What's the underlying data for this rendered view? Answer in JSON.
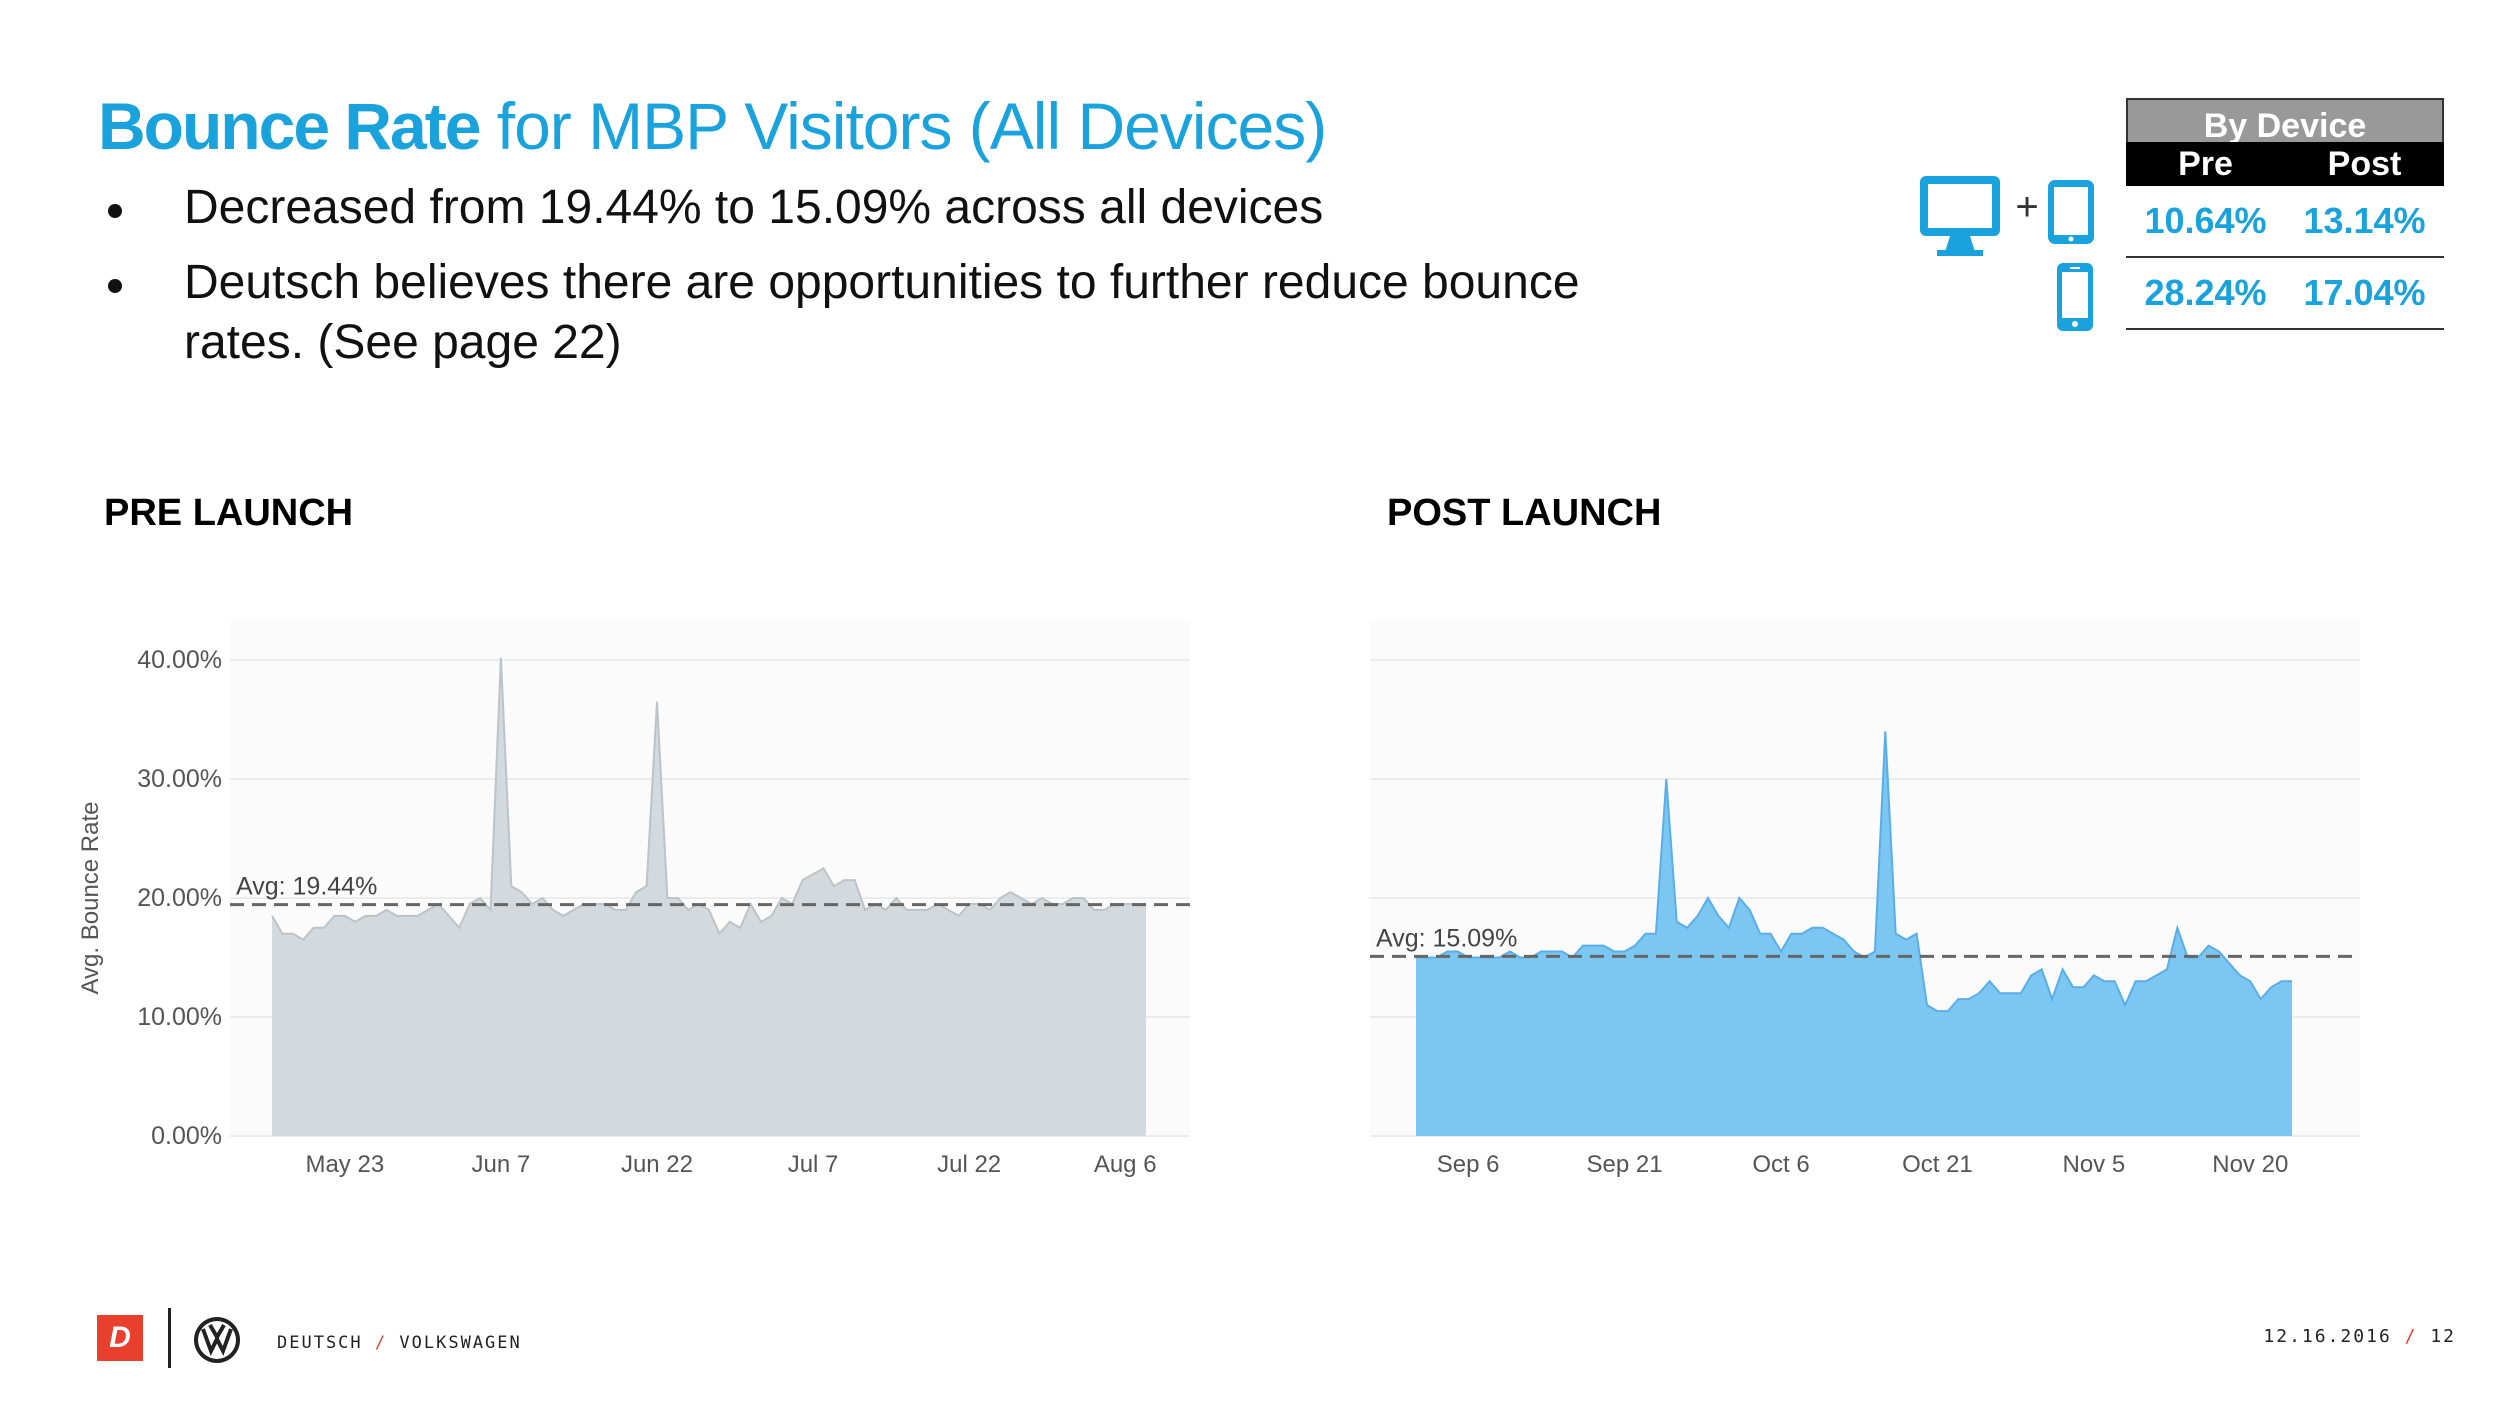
{
  "header": {
    "title_bold": "Bounce Rate",
    "title_rest": " for MBP Visitors  (All Devices)"
  },
  "bullets": [
    "Decreased from 19.44% to 15.09% across all devices",
    "Deutsch believes there are opportunities to further reduce bounce rates.  (See page 22)"
  ],
  "device_table": {
    "title": "By Device",
    "col_pre": "Pre",
    "col_post": "Post",
    "rows": [
      {
        "device_icon": "desktop-plus-tablet-icon",
        "pre": "10.64%",
        "post": "13.14%"
      },
      {
        "device_icon": "smartphone-icon",
        "pre": "28.24%",
        "post": "17.04%"
      }
    ],
    "plus_symbol": "+"
  },
  "colors": {
    "accent": "#1aa2dd",
    "pre_area": "#d3d9dd",
    "post_area": "#7cc6f2",
    "post_line": "#5aaee8",
    "pre_line": "#bcc4c9",
    "footer_red": "#e8402c"
  },
  "sections": {
    "pre": "PRE LAUNCH",
    "post": "POST LAUNCH"
  },
  "chart_data": [
    {
      "type": "area",
      "title": "PRE LAUNCH",
      "ylabel": "Avg. Bounce Rate",
      "xlabel": "",
      "ylim": [
        0,
        40
      ],
      "y_ticks": [
        "0.00%",
        "10.00%",
        "20.00%",
        "30.00%",
        "40.00%"
      ],
      "x_ticks": [
        {
          "label": "May 23",
          "index": 7
        },
        {
          "label": "Jun 7",
          "index": 22
        },
        {
          "label": "Jun 22",
          "index": 37
        },
        {
          "label": "Jul 7",
          "index": 52
        },
        {
          "label": "Jul 22",
          "index": 67
        },
        {
          "label": "Aug 6",
          "index": 82
        }
      ],
      "average": 19.44,
      "average_label": "Avg: 19.44%",
      "grid": true,
      "values": [
        18.5,
        17,
        17,
        16.5,
        17.5,
        17.5,
        18.5,
        18.5,
        18,
        18.5,
        18.5,
        19,
        18.5,
        18.5,
        18.5,
        19,
        19.5,
        18.5,
        17.5,
        19.5,
        20,
        19,
        40.2,
        21,
        20.5,
        19.5,
        20,
        19,
        18.5,
        19,
        19.5,
        19.5,
        19.5,
        19,
        19,
        20.5,
        21,
        36.5,
        20,
        20,
        19,
        19.5,
        19,
        17,
        18,
        17.5,
        19.5,
        18,
        18.5,
        20,
        19.5,
        21.5,
        22,
        22.5,
        21,
        21.5,
        21.5,
        19,
        19.5,
        19,
        20,
        19,
        19,
        19,
        19.5,
        19,
        18.5,
        19.5,
        19.5,
        19,
        20,
        20.5,
        20,
        19.5,
        20,
        19.5,
        19.5,
        20,
        20,
        19,
        19,
        19.5,
        19.5,
        19.5,
        19.5
      ]
    },
    {
      "type": "area",
      "title": "POST LAUNCH",
      "ylabel": "",
      "xlabel": "",
      "ylim": [
        0,
        40
      ],
      "x_ticks": [
        {
          "label": "Sep 6",
          "index": 5
        },
        {
          "label": "Sep 21",
          "index": 20
        },
        {
          "label": "Oct 6",
          "index": 35
        },
        {
          "label": "Oct 21",
          "index": 50
        },
        {
          "label": "Nov 5",
          "index": 65
        },
        {
          "label": "Nov 20",
          "index": 80
        }
      ],
      "average": 15.09,
      "average_label": "Avg: 15.09%",
      "grid": true,
      "values": [
        15,
        15,
        15,
        15.5,
        15.5,
        15,
        15,
        15,
        15,
        15.5,
        15,
        15,
        15.5,
        15.5,
        15.5,
        15,
        16,
        16,
        16,
        15.5,
        15.5,
        16,
        17,
        17,
        30,
        18,
        17.5,
        18.5,
        20,
        18.5,
        17.5,
        20,
        19,
        17,
        17,
        15.5,
        17,
        17,
        17.5,
        17.5,
        17,
        16.5,
        15.5,
        15,
        15.5,
        34,
        17,
        16.5,
        17,
        11,
        10.5,
        10.5,
        11.5,
        11.5,
        12,
        13,
        12,
        12,
        12,
        13.5,
        14,
        11.5,
        14,
        12.5,
        12.5,
        13.5,
        13,
        13,
        11,
        13,
        13,
        13.5,
        14,
        17.5,
        15,
        15,
        16,
        15.5,
        14.5,
        13.5,
        13,
        11.5,
        12.5,
        13,
        13
      ]
    }
  ],
  "footer": {
    "logo_d": "D",
    "brand_left": "DEUTSCH",
    "brand_sep": "/",
    "brand_right": "VOLKSWAGEN",
    "date": "12.16.2016",
    "date_sep": "/",
    "page": "12"
  }
}
